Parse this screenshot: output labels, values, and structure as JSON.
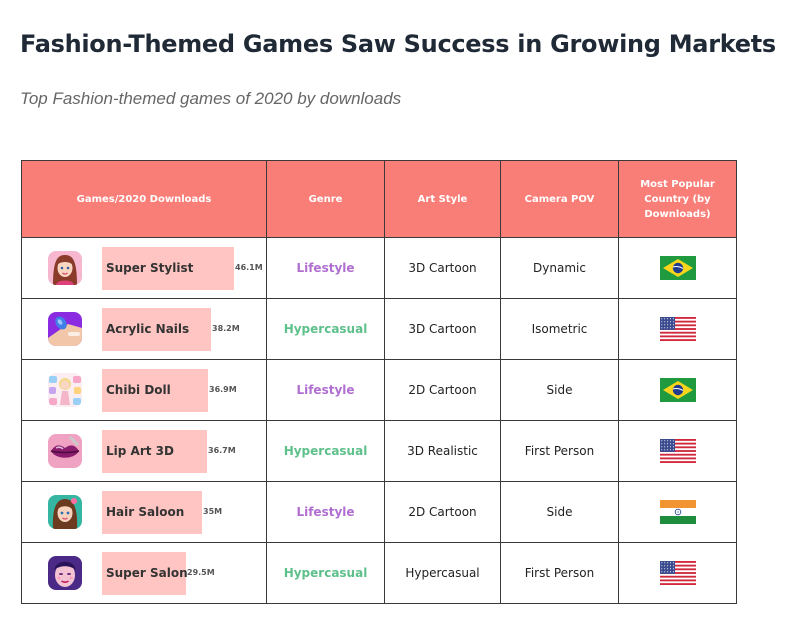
{
  "title": "Fashion-Themed Games Saw Success in Growing Markets",
  "subtitle": "Top Fashion-themed games of 2020 by downloads",
  "colors": {
    "header_bg": "#fa7e78",
    "bar": "#ffc5c3",
    "lifestyle": "#b06fd0",
    "hypercasual": "#5ec08a"
  },
  "table": {
    "headers": {
      "game": "Games/2020 Downloads",
      "genre": "Genre",
      "art_style": "Art Style",
      "camera": "Camera POV",
      "country": "Most Popular Country (by Downloads)"
    },
    "rows": [
      {
        "name": "Super Stylist",
        "downloads_label": "46.1M",
        "genre": "Lifestyle",
        "art_style": "3D Cartoon",
        "camera": "Dynamic",
        "country_flag": "brazil-flag",
        "icon": "super-stylist-icon"
      },
      {
        "name": "Acrylic Nails",
        "downloads_label": "38.2M",
        "genre": "Hypercasual",
        "art_style": "3D Cartoon",
        "camera": "Isometric",
        "country_flag": "usa-flag",
        "icon": "acrylic-nails-icon"
      },
      {
        "name": "Chibi Doll",
        "downloads_label": "36.9M",
        "genre": "Lifestyle",
        "art_style": "2D Cartoon",
        "camera": "Side",
        "country_flag": "brazil-flag",
        "icon": "chibi-doll-icon"
      },
      {
        "name": "Lip Art 3D",
        "downloads_label": "36.7M",
        "genre": "Hypercasual",
        "art_style": "3D Realistic",
        "camera": "First Person",
        "country_flag": "usa-flag",
        "icon": "lip-art-3d-icon"
      },
      {
        "name": "Hair Saloon",
        "downloads_label": "35M",
        "genre": "Lifestyle",
        "art_style": "2D Cartoon",
        "camera": "Side",
        "country_flag": "india-flag",
        "icon": "hair-saloon-icon"
      },
      {
        "name": "Super Salon",
        "downloads_label": "29.5M",
        "genre": "Hypercasual",
        "art_style": "Hypercasual",
        "camera": "First Person",
        "country_flag": "usa-flag",
        "icon": "super-salon-icon"
      }
    ]
  },
  "chart_data": {
    "type": "table",
    "title": "Fashion-Themed Games Saw Success in Growing Markets",
    "subtitle": "Top Fashion-themed games of 2020 by downloads",
    "columns": [
      "Games/2020 Downloads",
      "Genre",
      "Art Style",
      "Camera POV",
      "Most Popular Country (by Downloads)"
    ],
    "categories": [
      "Super Stylist",
      "Acrylic Nails",
      "Chibi Doll",
      "Lip Art 3D",
      "Hair Saloon",
      "Super Salon"
    ],
    "values": [
      46.1,
      38.2,
      36.9,
      36.7,
      35,
      29.5
    ],
    "value_unit": "M downloads"
  }
}
